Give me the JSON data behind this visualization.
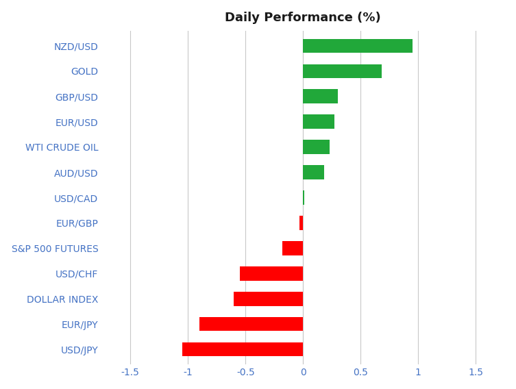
{
  "title": "Daily Performance (%)",
  "categories": [
    "USD/JPY",
    "EUR/JPY",
    "DOLLAR INDEX",
    "USD/CHF",
    "S&P 500 FUTURES",
    "EUR/GBP",
    "USD/CAD",
    "AUD/USD",
    "WTI CRUDE OIL",
    "EUR/USD",
    "GBP/USD",
    "GOLD",
    "NZD/USD"
  ],
  "values": [
    -1.05,
    -0.9,
    -0.6,
    -0.55,
    -0.18,
    -0.03,
    0.01,
    0.18,
    0.23,
    0.27,
    0.3,
    0.68,
    0.95
  ],
  "positive_color": "#21a83a",
  "negative_color": "#ff0000",
  "background_color": "#ffffff",
  "grid_color": "#c8c8c8",
  "label_color": "#4472c4",
  "title_color": "#1a1a1a",
  "xlim": [
    -1.75,
    1.75
  ],
  "xticks": [
    -1.5,
    -1.0,
    -0.5,
    0.0,
    0.5,
    1.0,
    1.5
  ],
  "xtick_labels": [
    "-1.5",
    "-1",
    "-0.5",
    "0",
    "0.5",
    "1",
    "1.5"
  ],
  "title_fontsize": 13,
  "label_fontsize": 10,
  "bar_height": 0.55
}
